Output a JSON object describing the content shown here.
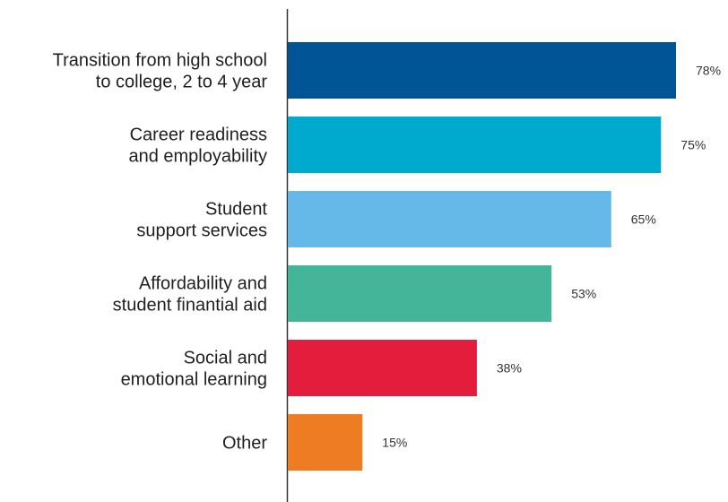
{
  "chart_data": {
    "type": "bar",
    "orientation": "horizontal",
    "title": "",
    "xlabel": "",
    "ylabel": "",
    "categories": [
      [
        "Transition from high school",
        "to college, 2 to 4 year"
      ],
      [
        "Career readiness",
        "and employability"
      ],
      [
        "Student",
        "support services"
      ],
      [
        "Affordability and",
        "student finantial aid"
      ],
      [
        "Social and",
        "emotional learning"
      ],
      [
        "Other"
      ]
    ],
    "values": [
      78,
      75,
      65,
      53,
      38,
      15
    ],
    "value_labels": [
      "78%",
      "75%",
      "65%",
      "53%",
      "38%",
      "15%"
    ],
    "colors": [
      "#005596",
      "#00a9ce",
      "#64b9e8",
      "#44b598",
      "#e31d3b",
      "#ee7c22"
    ],
    "xlim": [
      0,
      80
    ],
    "grid": false,
    "legend": "none"
  }
}
